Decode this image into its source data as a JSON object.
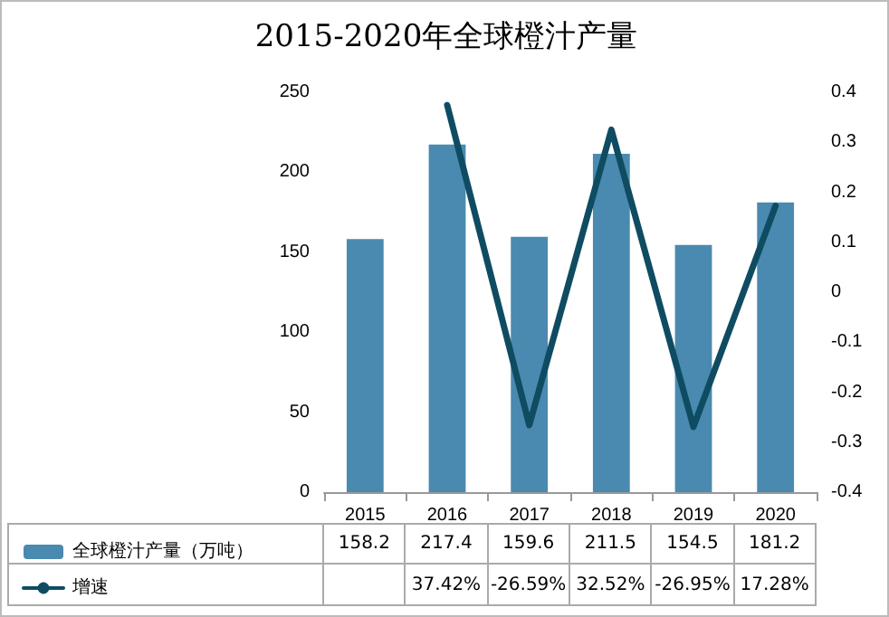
{
  "chart_data": {
    "type": "bar",
    "title": "2015-2020年全球橙汁产量",
    "categories": [
      "2015",
      "2016",
      "2017",
      "2018",
      "2019",
      "2020"
    ],
    "series": [
      {
        "name": "全球橙汁产量（万吨）",
        "color": "#4a8ab0",
        "values": [
          158.2,
          217.4,
          159.6,
          211.5,
          154.5,
          181.2
        ]
      },
      {
        "name": "增速",
        "type": "line",
        "axis": "y2",
        "color": "#0f4c62",
        "values": [
          null,
          0.3742,
          -0.2659,
          0.3252,
          -0.2695,
          0.1728
        ],
        "value_labels": [
          null,
          "37.42%",
          "-26.59%",
          "32.52%",
          "-26.95%",
          "17.28%"
        ]
      }
    ],
    "ylim": [
      0,
      250
    ],
    "yticks": [
      0,
      50,
      100,
      150,
      200,
      250
    ],
    "y2lim": [
      -0.4,
      0.4
    ],
    "y2ticks": [
      -0.4,
      -0.3,
      -0.2,
      -0.1,
      0,
      0.1,
      0.2,
      0.3,
      0.4
    ],
    "data_labels": true,
    "grid": false,
    "legend": "bottom",
    "marker": "none",
    "line_style": "solid"
  }
}
